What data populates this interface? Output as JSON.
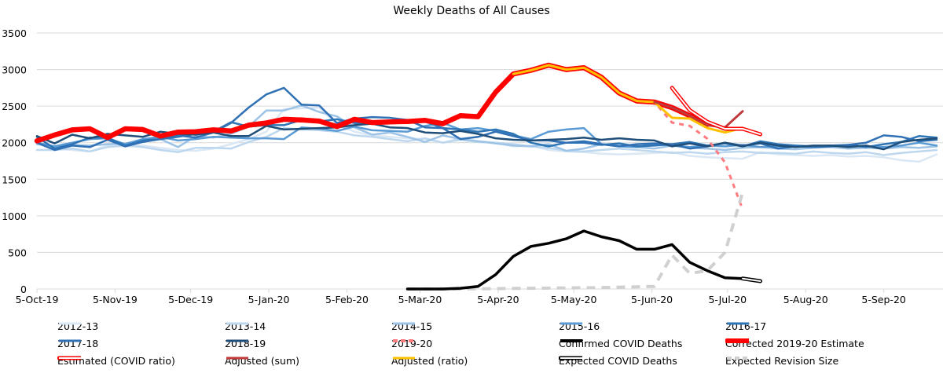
{
  "chart_data": {
    "type": "line",
    "title": "Weekly Deaths of All Causes",
    "xlabel": "",
    "ylabel": "",
    "ylim": [
      0,
      3500
    ],
    "yticks": [
      0,
      500,
      1000,
      1500,
      2000,
      2500,
      3000,
      3500
    ],
    "grid": true,
    "legend_position": "bottom",
    "xtick_labels": [
      "5-Oct-19",
      "5-Nov-19",
      "5-Dec-19",
      "5-Jan-20",
      "5-Feb-20",
      "5-Mar-20",
      "5-Apr-20",
      "5-May-20",
      "5-Jun-20",
      "5-Jul-20",
      "5-Aug-20",
      "5-Sep-20"
    ],
    "xtick_dates": [
      "2019-10-05",
      "2019-11-05",
      "2019-12-05",
      "2020-01-05",
      "2020-02-05",
      "2020-03-05",
      "2020-04-05",
      "2020-05-05",
      "2020-06-05",
      "2020-07-05",
      "2020-08-05",
      "2020-09-05"
    ],
    "x": [
      "2019-10-05",
      "2019-10-12",
      "2019-10-19",
      "2019-10-26",
      "2019-11-02",
      "2019-11-09",
      "2019-11-16",
      "2019-11-23",
      "2019-11-30",
      "2019-12-07",
      "2019-12-14",
      "2019-12-21",
      "2019-12-28",
      "2020-01-04",
      "2020-01-11",
      "2020-01-18",
      "2020-01-25",
      "2020-02-01",
      "2020-02-08",
      "2020-02-15",
      "2020-02-22",
      "2020-02-29",
      "2020-03-07",
      "2020-03-14",
      "2020-03-21",
      "2020-03-28",
      "2020-04-04",
      "2020-04-11",
      "2020-04-18",
      "2020-04-25",
      "2020-05-02",
      "2020-05-09",
      "2020-05-16",
      "2020-05-23",
      "2020-05-30",
      "2020-06-06",
      "2020-06-13",
      "2020-06-20",
      "2020-06-27",
      "2020-07-04",
      "2020-07-11",
      "2020-07-18",
      "2020-07-25",
      "2020-08-01",
      "2020-08-08",
      "2020-08-15",
      "2020-08-22",
      "2020-08-29",
      "2020-09-05",
      "2020-09-12",
      "2020-09-19",
      "2020-09-26"
    ],
    "series": [
      {
        "name": "2012-13",
        "color": "#dae7f5",
        "style": "solid",
        "values": [
          1990,
          1920,
          1900,
          1880,
          1960,
          1950,
          1960,
          1930,
          1900,
          1890,
          1920,
          1980,
          2050,
          2150,
          2460,
          2470,
          2480,
          2250,
          2150,
          2100,
          2080,
          2060,
          2050,
          2000,
          2060,
          2020,
          2000,
          1950,
          1960,
          1900,
          1880,
          1870,
          1850,
          1840,
          1850,
          1860,
          1870,
          1820,
          1800,
          1790,
          1780,
          1870,
          1840,
          1830,
          1820,
          1830,
          1810,
          1820,
          1800,
          1760,
          1740,
          1840
        ]
      },
      {
        "name": "2013-14",
        "color": "#bdd7ee",
        "style": "solid",
        "values": [
          1900,
          1900,
          1920,
          1880,
          1940,
          1960,
          1940,
          1900,
          1870,
          1930,
          1930,
          1920,
          2010,
          2080,
          2200,
          2180,
          2170,
          2150,
          2100,
          2080,
          2050,
          2020,
          2060,
          2000,
          2040,
          2010,
          2000,
          1980,
          1950,
          1930,
          1890,
          1880,
          1900,
          1920,
          1900,
          1880,
          1860,
          1870,
          1850,
          1870,
          1880,
          1860,
          1860,
          1850,
          1880,
          1860,
          1850,
          1870,
          1830,
          1860,
          1880,
          1900
        ]
      },
      {
        "name": "2014-15",
        "color": "#9dc3e6",
        "style": "solid",
        "values": [
          1980,
          1950,
          1970,
          1960,
          1980,
          1990,
          2030,
          2050,
          1940,
          2090,
          2070,
          2120,
          2220,
          2440,
          2440,
          2510,
          2420,
          2360,
          2210,
          2110,
          2140,
          2080,
          2010,
          2100,
          2050,
          2020,
          1990,
          1960,
          1950,
          1980,
          1890,
          1920,
          1980,
          1960,
          1940,
          1920,
          1960,
          1930,
          1920,
          1900,
          1930,
          1940,
          1920,
          1910,
          1930,
          1940,
          1920,
          1930,
          1920,
          1940,
          1930,
          1950
        ]
      },
      {
        "name": "2015-16",
        "color": "#5b9bd5",
        "style": "solid",
        "values": [
          2000,
          1950,
          2000,
          2050,
          2060,
          1980,
          2050,
          2080,
          2030,
          2050,
          2080,
          2070,
          2060,
          2060,
          2050,
          2210,
          2190,
          2160,
          2220,
          2170,
          2160,
          2150,
          2230,
          2270,
          2180,
          2200,
          2160,
          2100,
          2050,
          2150,
          2180,
          2200,
          1980,
          1950,
          1940,
          1980,
          1960,
          1940,
          1960,
          1950,
          1970,
          1940,
          1950,
          1960,
          1940,
          1950,
          1960,
          1950,
          1940,
          1960,
          2000,
          1960
        ]
      },
      {
        "name": "2016-17",
        "color": "#2e75b6",
        "style": "solid",
        "values": [
          2080,
          1920,
          1980,
          2070,
          2070,
          1960,
          2030,
          2050,
          2080,
          2120,
          2150,
          2280,
          2220,
          2240,
          2240,
          2310,
          2290,
          2320,
          2270,
          2260,
          2280,
          2300,
          2290,
          2200,
          2180,
          2150,
          2180,
          2120,
          2000,
          1950,
          2000,
          2000,
          1970,
          1990,
          1950,
          1960,
          1980,
          2010,
          1960,
          1990,
          1950,
          2020,
          1980,
          1960,
          1950,
          1960,
          1970,
          1940,
          1980,
          2010,
          2090,
          2070
        ]
      },
      {
        "name": "2017-18",
        "color": "#3070b4",
        "style": "solid",
        "values": [
          2000,
          1900,
          1960,
          1940,
          2040,
          1950,
          2010,
          2050,
          2100,
          2070,
          2140,
          2270,
          2480,
          2660,
          2750,
          2520,
          2510,
          2270,
          2330,
          2350,
          2340,
          2310,
          2210,
          2200,
          2050,
          2080,
          2150,
          2090,
          2030,
          2030,
          2000,
          2020,
          1980,
          1950,
          1980,
          1990,
          1980,
          1920,
          1950,
          2000,
          1960,
          1990,
          1920,
          1950,
          1940,
          1950,
          1970,
          2000,
          2100,
          2080,
          2020,
          2040
        ]
      },
      {
        "name": "2018-19",
        "color": "#1f4e79",
        "style": "solid",
        "values": [
          2090,
          1990,
          2110,
          2060,
          2120,
          2100,
          2080,
          2150,
          2120,
          2110,
          2140,
          2090,
          2090,
          2230,
          2180,
          2190,
          2200,
          2210,
          2240,
          2260,
          2210,
          2200,
          2140,
          2130,
          2160,
          2120,
          2060,
          2040,
          2030,
          2040,
          2050,
          2070,
          2040,
          2060,
          2040,
          2030,
          1950,
          1990,
          1950,
          2000,
          1950,
          2000,
          1960,
          1940,
          1960,
          1960,
          1940,
          1960,
          1910,
          2010,
          2040,
          2060
        ]
      },
      {
        "name": "2019-20",
        "color": "#ff7c80",
        "style": "dashed",
        "values": [
          2025,
          2105,
          2175,
          2190,
          2070,
          2190,
          2180,
          2090,
          2145,
          2150,
          2175,
          2160,
          2240,
          2270,
          2320,
          2310,
          2295,
          2220,
          2320,
          2275,
          2285,
          2290,
          2305,
          2260,
          2370,
          2355,
          2690,
          2940,
          2990,
          3060,
          3000,
          3025,
          2895,
          2680,
          2570,
          2555,
          2275,
          2230,
          2055,
          1730,
          1090,
          null,
          null,
          null,
          null,
          null,
          null,
          null,
          null,
          null,
          null,
          null
        ]
      },
      {
        "name": "Expected Revision Size",
        "color": "#d0d0d0",
        "style": "dashed",
        "values": [
          null,
          null,
          null,
          null,
          null,
          null,
          null,
          null,
          null,
          null,
          null,
          null,
          null,
          null,
          null,
          null,
          null,
          null,
          null,
          null,
          null,
          0,
          0,
          0,
          0,
          2,
          5,
          8,
          10,
          12,
          14,
          16,
          18,
          25,
          30,
          35,
          464,
          214,
          250,
          500,
          1321,
          null,
          null,
          null,
          null,
          null,
          null,
          null,
          null,
          null,
          null,
          null
        ]
      },
      {
        "name": "Confirmed COVID Deaths",
        "color": "#000000",
        "style": "solid",
        "values": [
          null,
          null,
          null,
          null,
          null,
          null,
          null,
          null,
          null,
          null,
          null,
          null,
          null,
          null,
          null,
          null,
          null,
          null,
          null,
          null,
          null,
          0,
          0,
          0,
          10,
          35,
          197,
          446,
          582,
          625,
          686,
          793,
          714,
          660,
          543,
          543,
          607,
          364,
          250,
          154,
          143,
          null,
          null,
          null,
          null,
          null,
          null,
          null,
          null,
          null,
          null,
          null
        ]
      },
      {
        "name": "Expected COVID Deaths",
        "color": "#000000",
        "style": "hollow",
        "values": [
          null,
          null,
          null,
          null,
          null,
          null,
          null,
          null,
          null,
          null,
          null,
          null,
          null,
          null,
          null,
          null,
          null,
          null,
          null,
          null,
          null,
          null,
          null,
          null,
          null,
          null,
          null,
          null,
          null,
          null,
          null,
          null,
          null,
          null,
          null,
          null,
          null,
          null,
          null,
          null,
          143,
          107,
          null,
          null,
          null,
          null,
          null,
          null,
          null,
          null,
          null,
          null
        ]
      },
      {
        "name": "Corrected 2019-20 Estimate",
        "color": "#ff0000",
        "style": "thick",
        "values": [
          2025,
          2105,
          2175,
          2190,
          2070,
          2190,
          2180,
          2090,
          2145,
          2150,
          2175,
          2160,
          2240,
          2270,
          2320,
          2310,
          2295,
          2220,
          2320,
          2275,
          2285,
          2290,
          2305,
          2260,
          2370,
          2355,
          2690,
          2940,
          2990,
          3060,
          3000,
          3025,
          2895,
          2680,
          2570,
          2555,
          2480,
          2370,
          2250,
          null,
          null,
          null,
          null,
          null,
          null,
          null,
          null,
          null,
          null,
          null,
          null,
          null
        ]
      },
      {
        "name": "Adjusted (ratio)",
        "color": "#ffc000",
        "style": "solid",
        "values": [
          null,
          null,
          null,
          null,
          null,
          null,
          null,
          null,
          null,
          null,
          null,
          null,
          null,
          null,
          null,
          null,
          null,
          null,
          null,
          null,
          null,
          null,
          null,
          null,
          null,
          null,
          null,
          2940,
          2990,
          3060,
          3000,
          3025,
          2895,
          2680,
          2570,
          2555,
          2340,
          2330,
          2200,
          2140,
          2200,
          null,
          null,
          null,
          null,
          null,
          null,
          null,
          null,
          null,
          null,
          null
        ]
      },
      {
        "name": "Adjusted (sum)",
        "color": "#c0393b",
        "style": "solid",
        "values": [
          null,
          null,
          null,
          null,
          null,
          null,
          null,
          null,
          null,
          null,
          null,
          null,
          null,
          null,
          null,
          null,
          null,
          null,
          null,
          null,
          null,
          null,
          null,
          null,
          null,
          null,
          null,
          null,
          null,
          null,
          null,
          null,
          null,
          null,
          null,
          2555,
          2480,
          2370,
          2240,
          2210,
          2430,
          null,
          null,
          null,
          null,
          null,
          null,
          null,
          null,
          null,
          null,
          null
        ]
      },
      {
        "name": "Estimated (COVID ratio)",
        "color": "#ff0000",
        "style": "hollow",
        "values": [
          null,
          null,
          null,
          null,
          null,
          null,
          null,
          null,
          null,
          null,
          null,
          null,
          null,
          null,
          null,
          null,
          null,
          null,
          null,
          null,
          null,
          null,
          null,
          null,
          null,
          null,
          null,
          null,
          null,
          null,
          null,
          null,
          null,
          null,
          null,
          null,
          2750,
          2445,
          2285,
          2190,
          2190,
          2115,
          null,
          null,
          null,
          null,
          null,
          null,
          null,
          null,
          null,
          null
        ]
      }
    ],
    "legend_order": [
      "2012-13",
      "2013-14",
      "2014-15",
      "2015-16",
      "2016-17",
      "2017-18",
      "2018-19",
      "2019-20",
      "Confirmed COVID Deaths",
      "Corrected 2019-20 Estimate",
      "Estimated (COVID ratio)",
      "Adjusted (sum)",
      "Adjusted (ratio)",
      "Expected COVID Deaths",
      "Expected Revision Size"
    ]
  }
}
